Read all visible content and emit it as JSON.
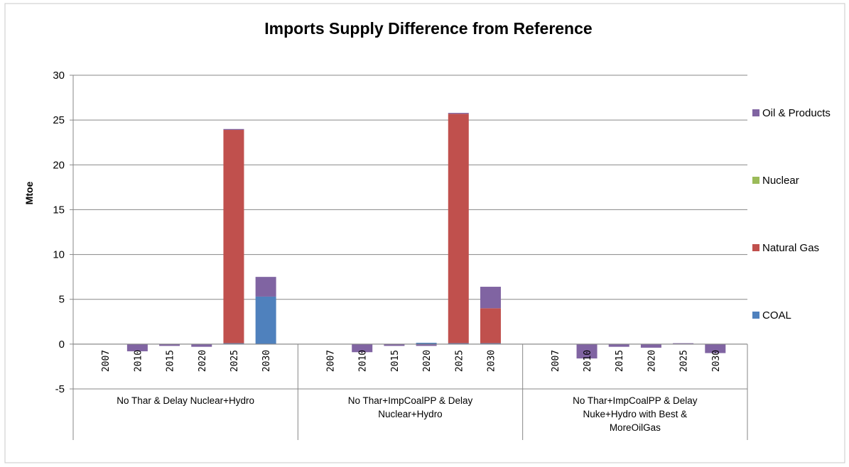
{
  "chart_data": {
    "type": "bar",
    "stacked": true,
    "title": "Imports Supply Difference from Reference",
    "ylabel": "Mtoe",
    "ylim": [
      -5,
      30
    ],
    "yticks": [
      -5,
      0,
      5,
      10,
      15,
      20,
      25,
      30
    ],
    "grid": true,
    "legend_position": "right",
    "groups": [
      {
        "label_lines": [
          "No Thar & Delay Nuclear+Hydro"
        ]
      },
      {
        "label_lines": [
          "No Thar+ImpCoalPP & Delay",
          "Nuclear+Hydro"
        ]
      },
      {
        "label_lines": [
          "No Thar+ImpCoalPP & Delay",
          "Nuke+Hydro with Best &",
          "MoreOilGas"
        ]
      }
    ],
    "categories": [
      "2007",
      "2010",
      "2015",
      "2020",
      "2025",
      "2030"
    ],
    "series": [
      {
        "name": "COAL",
        "color": "#4f81bd",
        "values": [
          [
            0,
            0,
            0,
            0,
            0.1,
            5.3
          ],
          [
            0,
            0,
            0,
            0.15,
            0.1,
            0.1
          ],
          [
            0,
            0,
            0,
            0,
            0,
            0
          ]
        ]
      },
      {
        "name": "Natural Gas",
        "color": "#c0504d",
        "values": [
          [
            0,
            0,
            0,
            0,
            23.8,
            0
          ],
          [
            0,
            0,
            0,
            0,
            25.6,
            3.9
          ],
          [
            0,
            0,
            0,
            0,
            0,
            0
          ]
        ]
      },
      {
        "name": "Nuclear",
        "color": "#9bbb59",
        "values": [
          [
            0,
            0,
            0,
            0,
            0,
            0
          ],
          [
            0,
            0,
            0,
            0,
            0,
            0
          ],
          [
            0,
            0,
            0,
            0,
            0,
            0
          ]
        ]
      },
      {
        "name": "Oil & Products",
        "color": "#8064a2",
        "values": [
          [
            0,
            -0.8,
            -0.2,
            -0.3,
            0.1,
            2.2
          ],
          [
            0,
            -0.9,
            -0.2,
            -0.2,
            0.1,
            2.4
          ],
          [
            0,
            -1.6,
            -0.3,
            -0.4,
            0.1,
            -1.0
          ]
        ]
      }
    ],
    "legend_order": [
      "Oil & Products",
      "Nuclear",
      "Natural Gas",
      "COAL"
    ]
  }
}
